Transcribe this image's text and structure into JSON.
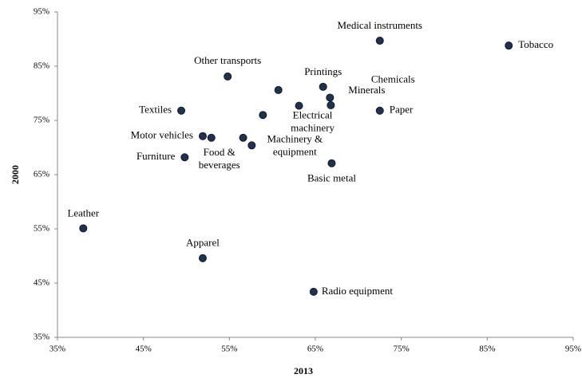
{
  "chart_data": {
    "type": "scatter",
    "x_label": "2013",
    "y_label": "2000",
    "color": "#1f3350",
    "x": [
      38.0,
      51.9,
      64.8,
      87.5,
      72.5,
      54.8,
      65.9,
      60.7,
      66.7,
      66.8,
      72.5,
      49.4,
      63.1,
      58.9,
      51.9,
      52.9,
      56.6,
      57.6,
      49.8,
      66.9
    ],
    "values": [
      55.1,
      49.6,
      43.4,
      88.8,
      89.7,
      83.1,
      81.2,
      80.6,
      79.2,
      77.8,
      76.8,
      76.8,
      77.7,
      76.0,
      72.1,
      71.8,
      71.8,
      70.4,
      68.2,
      67.1
    ],
    "labels": [
      "Leather",
      "Apparel",
      "Radio equipment",
      "Tobacco",
      "Medical instruments",
      "Other transports",
      "Printings",
      null,
      "Chemicals",
      "Minerals",
      "Paper",
      "Textiles",
      "Electrical machinery",
      null,
      "Motor vehicles",
      "Food & beverages",
      null,
      "Machinery & equipment",
      "Furniture",
      "Basic metal"
    ],
    "xlim": [
      35,
      95
    ],
    "ylim": [
      35,
      95
    ],
    "xticks": [
      {
        "value": 35,
        "label": "35%"
      },
      {
        "value": 45,
        "label": "45%"
      },
      {
        "value": 55,
        "label": "55%"
      },
      {
        "value": 65,
        "label": "65%"
      },
      {
        "value": 75,
        "label": "75%"
      },
      {
        "value": 85,
        "label": "85%"
      },
      {
        "value": 95,
        "label": "95%"
      }
    ],
    "yticks": [
      {
        "value": 35,
        "label": "35%"
      },
      {
        "value": 45,
        "label": "45%"
      },
      {
        "value": 55,
        "label": "55%"
      },
      {
        "value": 65,
        "label": "65%"
      },
      {
        "value": 75,
        "label": "75%"
      },
      {
        "value": 85,
        "label": "85%"
      },
      {
        "value": 95,
        "label": "95%"
      }
    ]
  }
}
